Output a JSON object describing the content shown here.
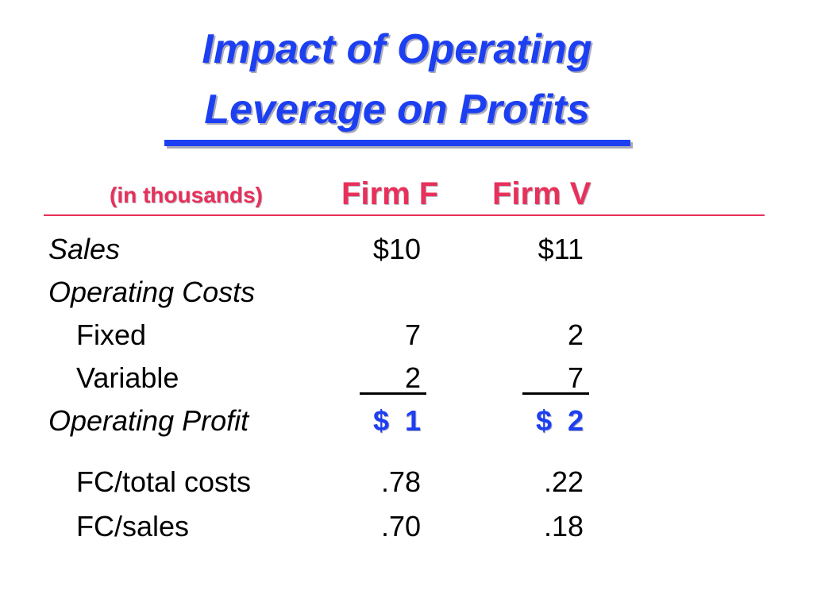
{
  "title": {
    "line1": "Impact of Operating",
    "line2": "Leverage on Profits"
  },
  "header": {
    "units": "(in thousands)",
    "col1": "Firm F",
    "col2": "Firm V"
  },
  "rows": [
    {
      "label": "Sales",
      "firm_f": "$10",
      "firm_v": "$11"
    },
    {
      "label": "Operating Costs",
      "firm_f": "",
      "firm_v": ""
    },
    {
      "label": "Fixed",
      "firm_f": "7",
      "firm_v": "2"
    },
    {
      "label": "Variable",
      "firm_f": "2",
      "firm_v": "7"
    },
    {
      "label": "Operating Profit",
      "firm_f": "$  1",
      "firm_v": "$  2"
    },
    {
      "label": "FC/total costs",
      "firm_f": ".78",
      "firm_v": ".22"
    },
    {
      "label": "FC/sales",
      "firm_f": ".70",
      "firm_v": ".18"
    }
  ],
  "colors": {
    "title": "#1d3ff2",
    "header": "#e8305a",
    "profit": "#1d3ff2"
  }
}
